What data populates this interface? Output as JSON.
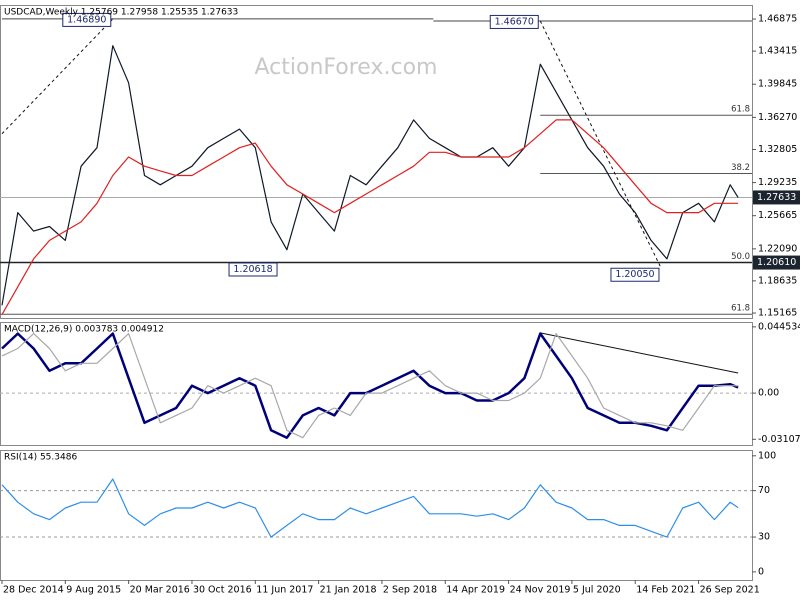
{
  "chart_data": [
    {
      "type": "line",
      "title": "USDCAD,Weekly  1.25769 1.27958 1.25535 1.27633",
      "watermark": "ActionForex.com",
      "x": [
        0,
        8,
        16,
        24,
        32,
        40,
        48,
        56,
        64,
        72,
        80,
        88,
        96,
        104,
        112,
        120,
        128,
        136,
        144,
        152,
        160,
        168,
        176,
        184,
        192,
        200,
        208,
        216,
        224,
        232,
        240,
        248,
        256,
        264,
        272,
        280,
        288,
        296,
        304,
        312,
        320,
        328,
        336,
        344,
        352,
        360,
        368,
        372
      ],
      "xlim": [
        -1,
        379
      ],
      "ylim": [
        1.1463,
        1.4839
      ],
      "yticks": [
        1.46875,
        1.43415,
        1.39845,
        {
          "value": 1.3627,
          "label": "1.36270"
        },
        1.32805,
        1.29235,
        1.25665,
        {
          "value": 1.2209,
          "label": "1.22090"
        },
        1.18635,
        1.15165
      ],
      "series": [
        {
          "name": "USDCAD",
          "color": "#101828",
          "values": [
            1.16,
            1.26,
            1.24,
            1.245,
            1.23,
            1.31,
            1.33,
            1.44,
            1.4,
            1.3,
            1.29,
            1.3,
            1.31,
            1.33,
            1.34,
            1.35,
            1.33,
            1.25,
            1.22,
            1.28,
            1.26,
            1.24,
            1.3,
            1.29,
            1.31,
            1.33,
            1.36,
            1.34,
            1.33,
            1.32,
            1.32,
            1.33,
            1.31,
            1.33,
            1.42,
            1.39,
            1.36,
            1.33,
            1.31,
            1.28,
            1.26,
            1.23,
            1.21,
            1.26,
            1.27,
            1.25,
            1.29,
            1.27633
          ]
        },
        {
          "name": "MA",
          "color": "#e02020",
          "values": [
            1.15,
            1.18,
            1.21,
            1.23,
            1.24,
            1.25,
            1.27,
            1.3,
            1.32,
            1.31,
            1.305,
            1.3,
            1.3,
            1.31,
            1.32,
            1.33,
            1.335,
            1.31,
            1.29,
            1.28,
            1.27,
            1.26,
            1.27,
            1.28,
            1.29,
            1.3,
            1.31,
            1.325,
            1.325,
            1.32,
            1.32,
            1.32,
            1.32,
            1.33,
            1.345,
            1.36,
            1.36,
            1.345,
            1.33,
            1.31,
            1.29,
            1.27,
            1.26,
            1.26,
            1.26,
            1.27,
            1.27,
            1.27
          ]
        }
      ],
      "hlines": [
        {
          "value": 1.4689,
          "from": 0,
          "to": 218
        },
        {
          "value": 1.4667,
          "from": 218,
          "to": 379
        }
      ],
      "fib_levels": [
        {
          "label": "61.8",
          "value": 1.365,
          "from": 272
        },
        {
          "label": "38.2",
          "value": 1.3022,
          "from": 272
        },
        {
          "label": "50.0",
          "value": 1.2061,
          "from": -1
        },
        {
          "label": "61.8",
          "value": 1.1504,
          "from": -1
        }
      ],
      "trendlines": [
        {
          "x": [
            0,
            56
          ],
          "y": [
            1.345,
            1.4689
          ]
        },
        {
          "x": [
            272,
            333
          ],
          "y": [
            1.4667,
            1.2005
          ]
        }
      ],
      "annotations": [
        {
          "text": "1.46890",
          "value": 1.4689,
          "x": 56
        },
        {
          "text": "1.46670",
          "value": 1.4667,
          "x": 272
        },
        {
          "text": "1.20618",
          "value": 1.20618,
          "x": 140
        },
        {
          "text": "1.20050",
          "value": 1.2005,
          "x": 333
        }
      ],
      "axis_boxes": [
        1.27633,
        {
          "value": 1.2061,
          "label": "1.20610"
        }
      ]
    },
    {
      "type": "line",
      "title": "MACD(12,26,9) 0.003783 0.004912",
      "x": [
        0,
        8,
        16,
        24,
        32,
        40,
        48,
        56,
        64,
        72,
        80,
        88,
        96,
        104,
        112,
        120,
        128,
        136,
        144,
        152,
        160,
        168,
        176,
        184,
        192,
        200,
        208,
        216,
        224,
        232,
        240,
        248,
        256,
        264,
        272,
        280,
        288,
        296,
        304,
        312,
        320,
        328,
        336,
        344,
        352,
        360,
        368,
        372
      ],
      "xlim": [
        -1,
        379
      ],
      "ylim": [
        -0.0349,
        0.0478
      ],
      "yticks": [
        0.044534,
        {
          "value": 0,
          "label": "0.00"
        },
        -0.031072
      ],
      "series": [
        {
          "name": "MACD",
          "color": "#00007a",
          "values": [
            0.03,
            0.04,
            0.03,
            0.015,
            0.02,
            0.02,
            0.03,
            0.04,
            0.01,
            -0.02,
            -0.015,
            -0.01,
            0.005,
            0.0,
            0.005,
            0.01,
            0.005,
            -0.025,
            -0.03,
            -0.015,
            -0.01,
            -0.015,
            0.0,
            0.0,
            0.005,
            0.01,
            0.015,
            0.005,
            0.0,
            0.0,
            -0.005,
            -0.005,
            0.0,
            0.01,
            0.04,
            0.025,
            0.01,
            -0.01,
            -0.015,
            -0.02,
            -0.02,
            -0.022,
            -0.025,
            -0.01,
            0.005,
            0.005,
            0.006,
            0.003783
          ]
        },
        {
          "name": "Signal",
          "color": "#a8a8a8",
          "values": [
            0.025,
            0.03,
            0.04,
            0.03,
            0.015,
            0.02,
            0.02,
            0.03,
            0.04,
            0.01,
            -0.02,
            -0.015,
            -0.01,
            0.005,
            0.0,
            0.005,
            0.01,
            0.005,
            -0.025,
            -0.03,
            -0.015,
            -0.01,
            -0.015,
            0.0,
            0.0,
            0.005,
            0.01,
            0.015,
            0.005,
            0.0,
            0.0,
            -0.005,
            -0.005,
            0.0,
            0.01,
            0.04,
            0.025,
            0.01,
            -0.01,
            -0.015,
            -0.02,
            -0.02,
            -0.022,
            -0.025,
            -0.01,
            0.005,
            0.005,
            0.004912
          ]
        }
      ],
      "trendlines": [
        {
          "x": [
            272,
            372
          ],
          "y": [
            0.0405,
            0.0135
          ]
        }
      ]
    },
    {
      "type": "line",
      "title": "RSI(14) 55.3486",
      "x": [
        0,
        8,
        16,
        24,
        32,
        40,
        48,
        56,
        64,
        72,
        80,
        88,
        96,
        104,
        112,
        120,
        128,
        136,
        144,
        152,
        160,
        168,
        176,
        184,
        192,
        200,
        208,
        216,
        224,
        232,
        240,
        248,
        256,
        264,
        272,
        280,
        288,
        296,
        304,
        312,
        320,
        328,
        336,
        344,
        352,
        360,
        368,
        372
      ],
      "xlim": [
        -1,
        379
      ],
      "ylim": [
        -7,
        105
      ],
      "yticks": [
        100,
        70,
        30,
        0
      ],
      "ref_lines": [
        70,
        30
      ],
      "series": [
        {
          "name": "RSI",
          "color": "#2f8fe8",
          "values": [
            75,
            60,
            50,
            45,
            55,
            60,
            60,
            80,
            50,
            40,
            50,
            55,
            55,
            60,
            55,
            60,
            55,
            30,
            40,
            50,
            45,
            45,
            55,
            50,
            55,
            60,
            65,
            50,
            50,
            50,
            48,
            50,
            45,
            55,
            75,
            60,
            55,
            45,
            45,
            40,
            40,
            35,
            30,
            55,
            60,
            45,
            60,
            55.3486
          ]
        }
      ],
      "xticks": [
        {
          "value": 0,
          "label": "28 Dec 2014"
        },
        {
          "value": 32,
          "label": "9 Aug 2015"
        },
        {
          "value": 64,
          "label": "20 Mar 2016"
        },
        {
          "value": 96,
          "label": "30 Oct 2016"
        },
        {
          "value": 128,
          "label": "11 Jun 2017"
        },
        {
          "value": 160,
          "label": "21 Jan 2018"
        },
        {
          "value": 192,
          "label": "2 Sep 2018"
        },
        {
          "value": 224,
          "label": "14 Apr 2019"
        },
        {
          "value": 256,
          "label": "24 Nov 2019"
        },
        {
          "value": 288,
          "label": "5 Jul 2020"
        },
        {
          "value": 320,
          "label": "14 Feb 2021"
        },
        {
          "value": 352,
          "label": "26 Sep 2021"
        }
      ]
    }
  ]
}
